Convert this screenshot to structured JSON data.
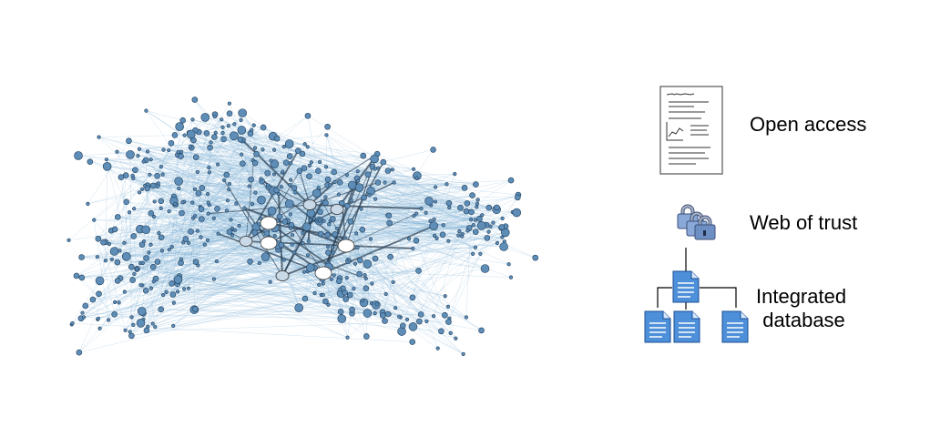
{
  "legend": {
    "open_access": "Open access",
    "web_of_trust": "Web of trust",
    "integrated_line1": "Integrated",
    "integrated_line2": "database"
  },
  "icons": [
    "document-page-icon",
    "padlocks-icon",
    "document-tree-icon"
  ],
  "colors": {
    "node_fill": "#5e8db7",
    "node_stroke": "#1f3f5c",
    "edge": "#7fb0d4",
    "hub_fill": "#ffffff"
  }
}
